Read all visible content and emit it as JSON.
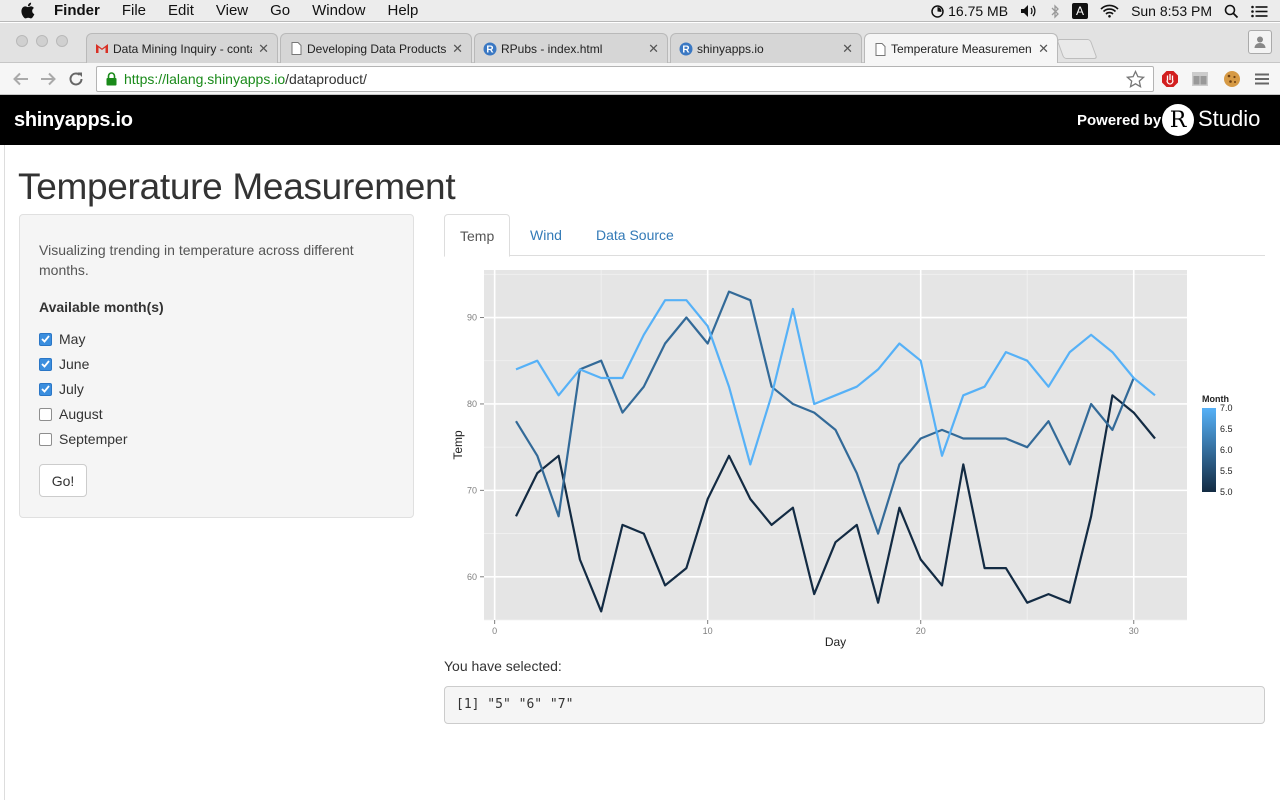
{
  "menubar": {
    "items": [
      "Finder",
      "File",
      "Edit",
      "View",
      "Go",
      "Window",
      "Help"
    ],
    "memory": "16.75 MB",
    "input_source": "A",
    "clock": "Sun 8:53 PM"
  },
  "browser": {
    "tabs": [
      {
        "label": "Data Mining Inquiry - conta",
        "icon": "gmail-icon"
      },
      {
        "label": "Developing Data Products",
        "icon": "page-icon"
      },
      {
        "label": "RPubs - index.html",
        "icon": "rpubs-icon"
      },
      {
        "label": "shinyapps.io",
        "icon": "rpubs-icon"
      },
      {
        "label": "Temperature Measurement",
        "icon": "page-icon",
        "active": true
      }
    ],
    "url_scheme": "https://",
    "url_host": "lalang.shinyapps.io",
    "url_path": "/dataproduct/"
  },
  "header": {
    "brand": "shinyapps.io",
    "powered_by": "Powered by",
    "r_letter": "R",
    "studio": "Studio"
  },
  "page": {
    "title": "Temperature Measurement"
  },
  "sidebar": {
    "description": "Visualizing trending in temperature across different months.",
    "months_label": "Available month(s)",
    "months": [
      {
        "label": "May",
        "checked": true
      },
      {
        "label": "June",
        "checked": true
      },
      {
        "label": "July",
        "checked": true
      },
      {
        "label": "August",
        "checked": false
      },
      {
        "label": "Septemper",
        "checked": false
      }
    ],
    "go_label": "Go!"
  },
  "tabs": [
    {
      "label": "Temp",
      "active": true
    },
    {
      "label": "Wind",
      "active": false
    },
    {
      "label": "Data Source",
      "active": false
    }
  ],
  "output": {
    "label": "You have selected:",
    "value": "[1] \"5\" \"6\" \"7\""
  },
  "chart_data": {
    "type": "line",
    "xlabel": "Day",
    "ylabel": "Temp",
    "xlim": [
      -0.5,
      32.5
    ],
    "ylim": [
      55,
      95.5
    ],
    "x_ticks": [
      0,
      10,
      20,
      30
    ],
    "y_ticks": [
      60,
      70,
      80,
      90
    ],
    "grid": true,
    "background": "#e5e5e5",
    "legend": {
      "title": "Month",
      "position": "right",
      "ticks": [
        "7.0",
        "6.5",
        "6.0",
        "5.5",
        "5.0"
      ],
      "low_color": "#132b43",
      "high_color": "#56b1f7"
    },
    "series": [
      {
        "color": "#132b43",
        "x": [
          1,
          2,
          3,
          4,
          5,
          6,
          7,
          8,
          9,
          10,
          11,
          12,
          13,
          14,
          15,
          16,
          17,
          18,
          19,
          20,
          21,
          22,
          23,
          24,
          25,
          26,
          27,
          28,
          29,
          30,
          31
        ],
        "values": [
          67,
          72,
          74,
          62,
          56,
          66,
          65,
          59,
          61,
          69,
          74,
          69,
          66,
          68,
          58,
          64,
          66,
          57,
          68,
          62,
          59,
          73,
          61,
          61,
          57,
          58,
          57,
          67,
          81,
          79,
          76
        ]
      },
      {
        "color": "#336a98",
        "x": [
          1,
          2,
          3,
          4,
          5,
          6,
          7,
          8,
          9,
          10,
          11,
          12,
          13,
          14,
          15,
          16,
          17,
          18,
          19,
          20,
          21,
          22,
          23,
          24,
          25,
          26,
          27,
          28,
          29,
          30
        ],
        "values": [
          78,
          74,
          67,
          84,
          85,
          79,
          82,
          87,
          90,
          87,
          93,
          92,
          82,
          80,
          79,
          77,
          72,
          65,
          73,
          76,
          77,
          76,
          76,
          76,
          75,
          78,
          73,
          80,
          77,
          83
        ]
      },
      {
        "color": "#56b1f7",
        "x": [
          1,
          2,
          3,
          4,
          5,
          6,
          7,
          8,
          9,
          10,
          11,
          12,
          13,
          14,
          15,
          16,
          17,
          18,
          19,
          20,
          21,
          22,
          23,
          24,
          25,
          26,
          27,
          28,
          29,
          30,
          31
        ],
        "values": [
          84,
          85,
          81,
          84,
          83,
          83,
          88,
          92,
          92,
          89,
          82,
          73,
          81,
          91,
          80,
          81,
          82,
          84,
          87,
          85,
          74,
          81,
          82,
          86,
          85,
          82,
          86,
          88,
          86,
          83,
          81
        ]
      }
    ]
  }
}
